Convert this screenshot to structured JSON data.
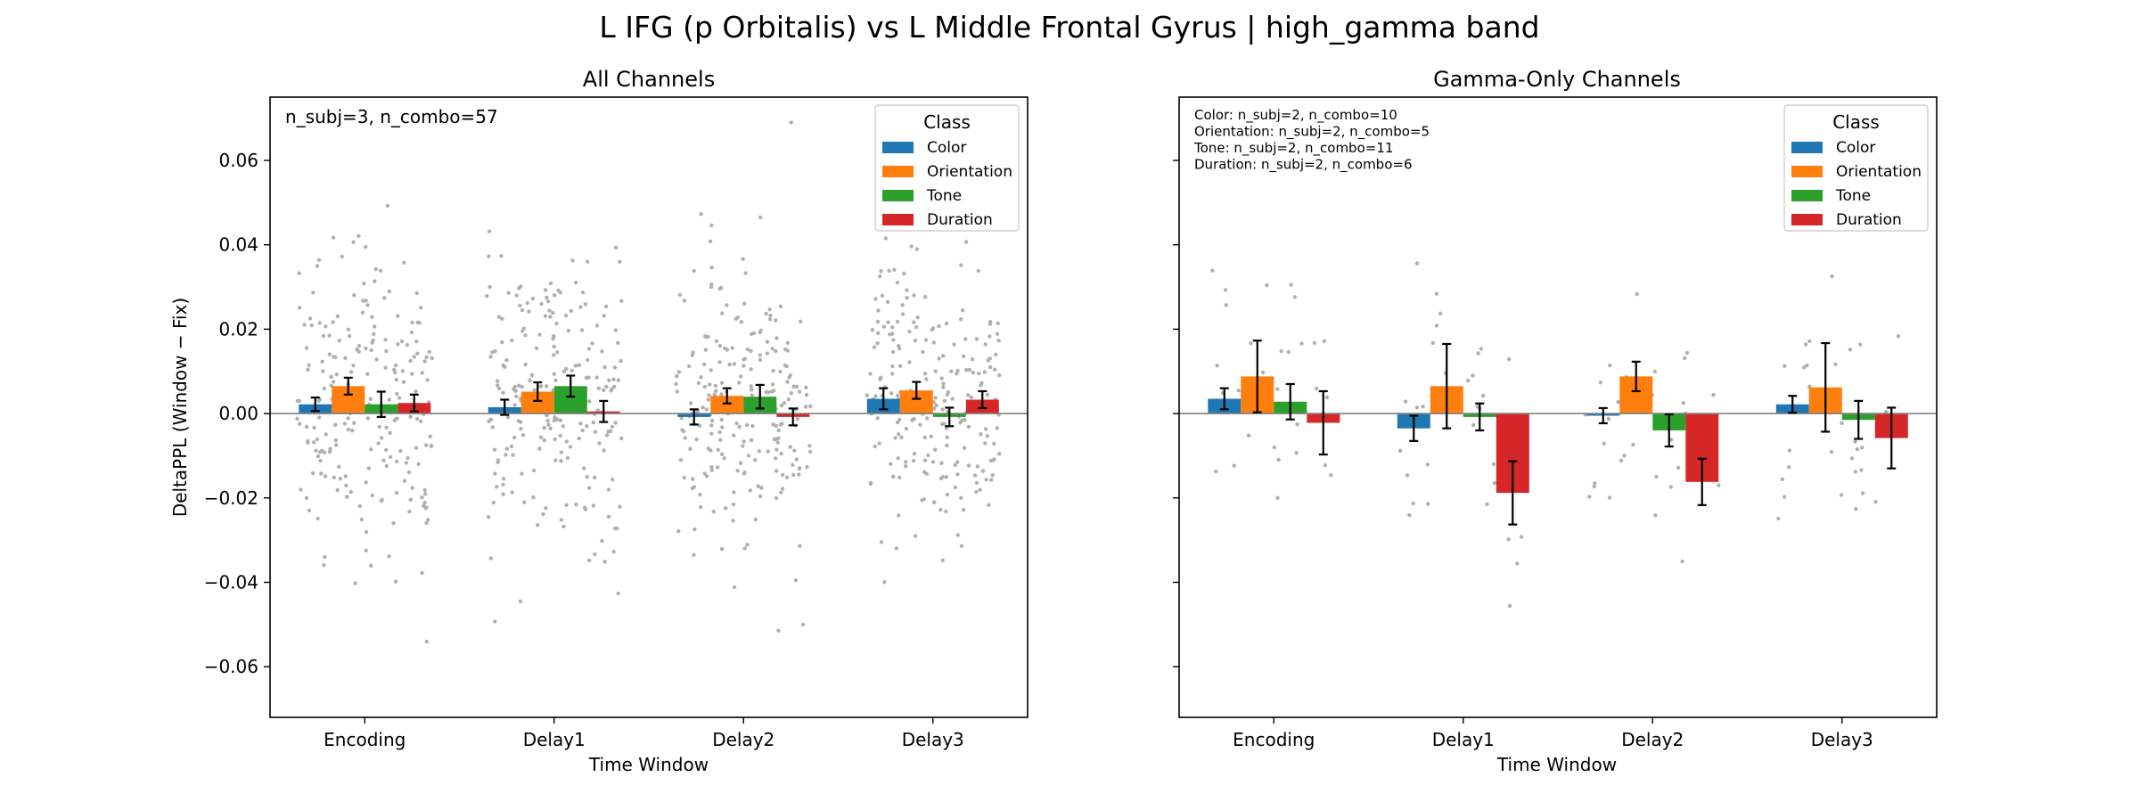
{
  "figure": {
    "suptitle": "L IFG (p Orbitalis) vs L Middle Frontal Gyrus  |  high_gamma band"
  },
  "colors": {
    "Color": "#1f77b4",
    "Orientation": "#ff7f0e",
    "Tone": "#2ca02c",
    "Duration": "#d62728",
    "scatter": "#b0b0b0",
    "zero_line": "#808080"
  },
  "chart_data": [
    {
      "type": "bar",
      "title": "All Channels",
      "xlabel": "Time Window",
      "ylabel": "DeltaPPL (Window − Fix)",
      "categories": [
        "Encoding",
        "Delay1",
        "Delay2",
        "Delay3"
      ],
      "ylim": [
        -0.072,
        0.075
      ],
      "yticks": [
        0.06,
        0.04,
        0.02,
        0.0,
        -0.02,
        -0.04,
        -0.06
      ],
      "ytick_labels": [
        "0.06",
        "0.04",
        "0.02",
        "0.00",
        "−0.02",
        "−0.04",
        "−0.06"
      ],
      "legend": {
        "title": "Class",
        "position": "top-right"
      },
      "annotations": [
        "n_subj=3, n_combo=57"
      ],
      "series": [
        {
          "name": "Color",
          "values": [
            0.0022,
            0.0015,
            -0.0008,
            0.0035
          ],
          "errors": [
            0.0016,
            0.0018,
            0.0018,
            0.0025
          ]
        },
        {
          "name": "Orientation",
          "values": [
            0.0065,
            0.0052,
            0.0042,
            0.0055
          ],
          "errors": [
            0.002,
            0.0022,
            0.0018,
            0.002
          ]
        },
        {
          "name": "Tone",
          "values": [
            0.0022,
            0.0065,
            0.004,
            -0.0008
          ],
          "errors": [
            0.003,
            0.0025,
            0.0028,
            0.0022
          ]
        },
        {
          "name": "Duration",
          "values": [
            0.0025,
            0.0005,
            -0.0008,
            0.0033
          ],
          "errors": [
            0.002,
            0.0025,
            0.002,
            0.002
          ]
        }
      ],
      "scatter_points_per_bar": 57
    },
    {
      "type": "bar",
      "title": "Gamma-Only Channels",
      "xlabel": "Time Window",
      "ylabel": "",
      "categories": [
        "Encoding",
        "Delay1",
        "Delay2",
        "Delay3"
      ],
      "ylim": [
        -0.072,
        0.075
      ],
      "yticks": [
        0.06,
        0.04,
        0.02,
        0.0,
        -0.02,
        -0.04,
        -0.06
      ],
      "ytick_labels": [
        "",
        "",
        "",
        "",
        "",
        "",
        ""
      ],
      "legend": {
        "title": "Class",
        "position": "top-right"
      },
      "annotations": [
        "Color: n_subj=2, n_combo=10",
        "Orientation: n_subj=2, n_combo=5",
        "Tone: n_subj=2, n_combo=11",
        "Duration: n_subj=2, n_combo=6"
      ],
      "series": [
        {
          "name": "Color",
          "values": [
            0.0035,
            -0.0035,
            -0.0005,
            0.0022
          ],
          "errors": [
            0.0025,
            0.003,
            0.0018,
            0.002
          ]
        },
        {
          "name": "Orientation",
          "values": [
            0.0088,
            0.0065,
            0.0088,
            0.0062
          ],
          "errors": [
            0.0085,
            0.01,
            0.0035,
            0.0105
          ]
        },
        {
          "name": "Tone",
          "values": [
            0.0028,
            -0.0008,
            -0.004,
            -0.0015
          ],
          "errors": [
            0.0042,
            0.0032,
            0.0038,
            0.0045
          ]
        },
        {
          "name": "Duration",
          "values": [
            -0.0022,
            -0.0188,
            -0.0162,
            -0.0058
          ],
          "errors": [
            0.0075,
            0.0075,
            0.0055,
            0.0072
          ]
        }
      ],
      "scatter_points_per_bar": [
        10,
        5,
        11,
        6
      ]
    }
  ]
}
